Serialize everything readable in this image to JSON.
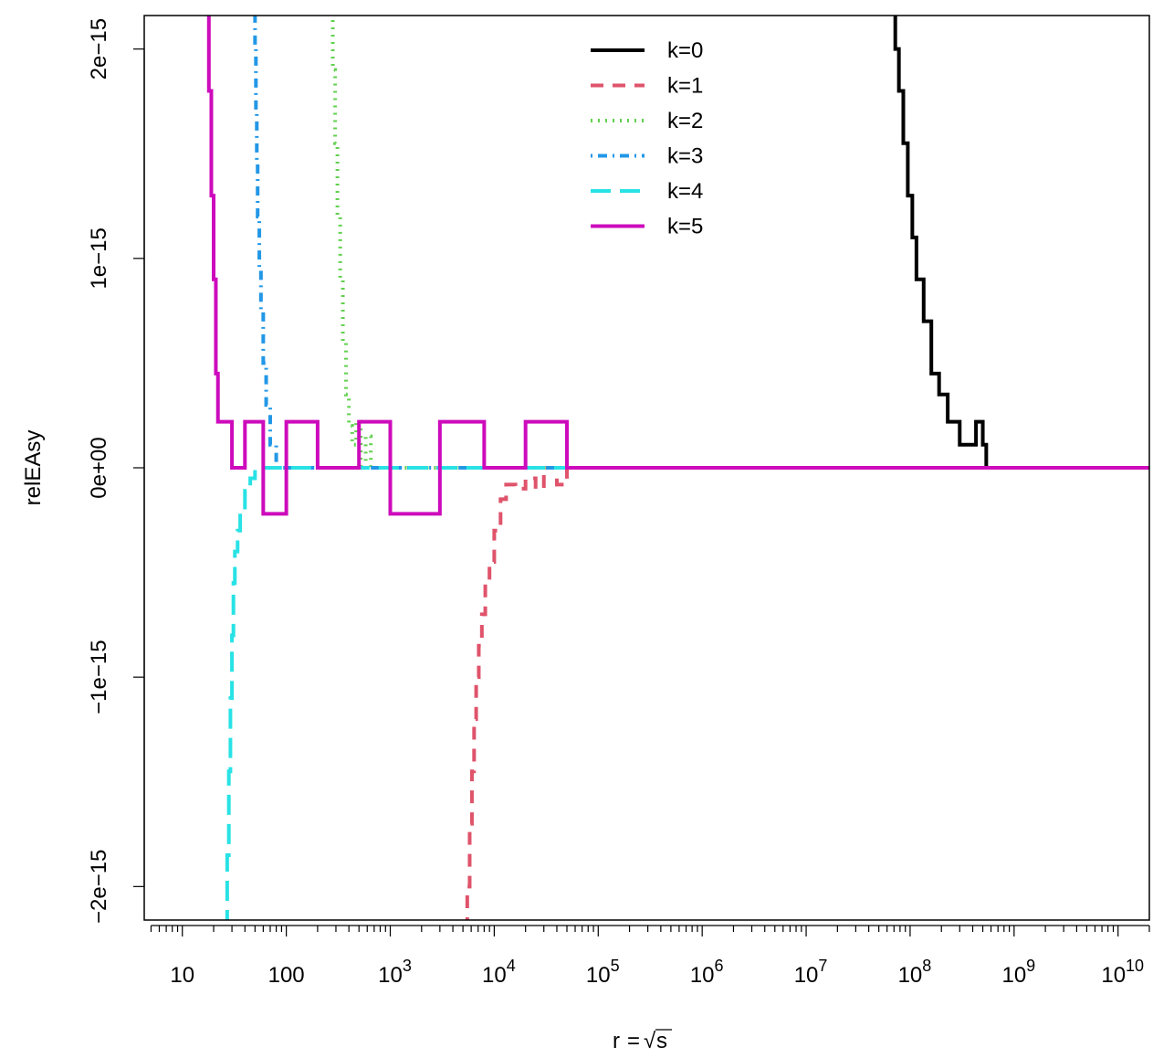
{
  "chart_data": {
    "type": "line",
    "title": "",
    "xlabel": "r = √s",
    "xlabel_parts": {
      "lhs": "r",
      "op": "=",
      "radical": "√",
      "radicand": "s"
    },
    "ylabel": "relEAsy",
    "x_scale": "log10",
    "xlim": [
      4.3,
      20000000000
    ],
    "ylim": [
      -2.16e-15,
      2.16e-15
    ],
    "grid": false,
    "legend_position": "top-center",
    "x_ticks": [
      {
        "value": 10,
        "base": "10",
        "exp": ""
      },
      {
        "value": 100,
        "base": "100",
        "exp": ""
      },
      {
        "value": 1000,
        "base": "10",
        "exp": "3"
      },
      {
        "value": 10000,
        "base": "10",
        "exp": "4"
      },
      {
        "value": 100000,
        "base": "10",
        "exp": "5"
      },
      {
        "value": 1000000,
        "base": "10",
        "exp": "6"
      },
      {
        "value": 10000000,
        "base": "10",
        "exp": "7"
      },
      {
        "value": 100000000,
        "base": "10",
        "exp": "8"
      },
      {
        "value": 1000000000,
        "base": "10",
        "exp": "9"
      },
      {
        "value": 10000000000,
        "base": "10",
        "exp": "10"
      }
    ],
    "y_ticks": [
      {
        "value": -2e-15,
        "label": "−2e−15"
      },
      {
        "value": -1e-15,
        "label": "−1e−15"
      },
      {
        "value": 0,
        "label": "0e+00"
      },
      {
        "value": 1e-15,
        "label": "1e−15"
      },
      {
        "value": 2e-15,
        "label": "2e−15"
      }
    ],
    "series": [
      {
        "name": "k=0",
        "color": "#000000",
        "dash": "solid",
        "x": [
          68000000,
          72000000,
          78000000,
          86000000,
          95000000,
          105000000,
          115000000,
          135000000,
          160000000,
          190000000,
          230000000,
          260000000,
          300000000,
          360000000,
          430000000,
          500000000,
          540000000,
          600000000,
          20000000000
        ],
        "y": [
          2.2e-15,
          2e-15,
          1.8e-15,
          1.55e-15,
          1.3e-15,
          1.1e-15,
          9e-16,
          7e-16,
          4.5e-16,
          3.5e-16,
          2.2e-16,
          2.2e-16,
          1.1e-16,
          1.1e-16,
          2.2e-16,
          1.1e-16,
          0,
          0,
          0
        ]
      },
      {
        "name": "k=1",
        "color": "#DF536B",
        "dash": "dashed",
        "x": [
          5300,
          5500,
          5800,
          6100,
          6400,
          6700,
          7100,
          7600,
          8200,
          9000,
          10000,
          11500,
          13000,
          16000,
          20000,
          25000,
          30000,
          40000,
          50000,
          20000000000
        ],
        "y": [
          -2.2e-15,
          -2e-15,
          -1.7e-15,
          -1.45e-15,
          -1.2e-15,
          -1e-15,
          -8.5e-16,
          -7e-16,
          -5.5e-16,
          -4.5e-16,
          -3e-16,
          -1.5e-16,
          -8e-17,
          -1e-16,
          -5e-17,
          -1e-16,
          0,
          -8e-17,
          0,
          0
        ]
      },
      {
        "name": "k=2",
        "color": "#61D04F",
        "dash": "dotted",
        "x": [
          270,
          280,
          295,
          310,
          330,
          350,
          375,
          400,
          430,
          470,
          520,
          580,
          650,
          800,
          20000000000
        ],
        "y": [
          2.2e-15,
          1.9e-15,
          1.55e-15,
          1.2e-15,
          9e-16,
          6e-16,
          3.5e-16,
          2e-16,
          1.1e-16,
          2.2e-16,
          0,
          1.5e-16,
          0,
          0,
          0
        ]
      },
      {
        "name": "k=3",
        "color": "#2297E6",
        "dash": "dotdash",
        "x": [
          49,
          50,
          51,
          52,
          53,
          55,
          57,
          60,
          64,
          70,
          80,
          100,
          20000000000
        ],
        "y": [
          2.2e-15,
          2e-15,
          1.7e-15,
          1.45e-15,
          1.2e-15,
          9.5e-16,
          7.5e-16,
          5e-16,
          3e-16,
          1.1e-16,
          0,
          0,
          0
        ]
      },
      {
        "name": "k=4",
        "color": "#28E2E5",
        "dash": "longdash",
        "x": [
          26,
          27,
          28,
          29,
          30,
          31,
          32,
          34,
          36,
          40,
          45,
          50,
          20000000000
        ],
        "y": [
          -2.2e-15,
          -1.85e-15,
          -1.45e-15,
          -1.1e-15,
          -8e-16,
          -5.5e-16,
          -4e-16,
          -3e-16,
          -2e-16,
          -1.1e-16,
          -5e-17,
          0,
          0
        ]
      },
      {
        "name": "k=5",
        "color": "#CD0BBC",
        "dash": "solid",
        "x": [
          17.5,
          18,
          19,
          20,
          21,
          22,
          25,
          30,
          40,
          60,
          100,
          200,
          500,
          1000,
          3000,
          8000,
          20000,
          50000,
          4500000,
          20000000000
        ],
        "y": [
          2.2e-15,
          1.8e-15,
          1.3e-15,
          9e-16,
          4.5e-16,
          2.2e-16,
          2.2e-16,
          0,
          2.2e-16,
          -2.2e-16,
          2.2e-16,
          0,
          2.2e-16,
          -2.2e-16,
          2.2e-16,
          0,
          2.2e-16,
          0,
          0,
          0
        ]
      }
    ]
  }
}
